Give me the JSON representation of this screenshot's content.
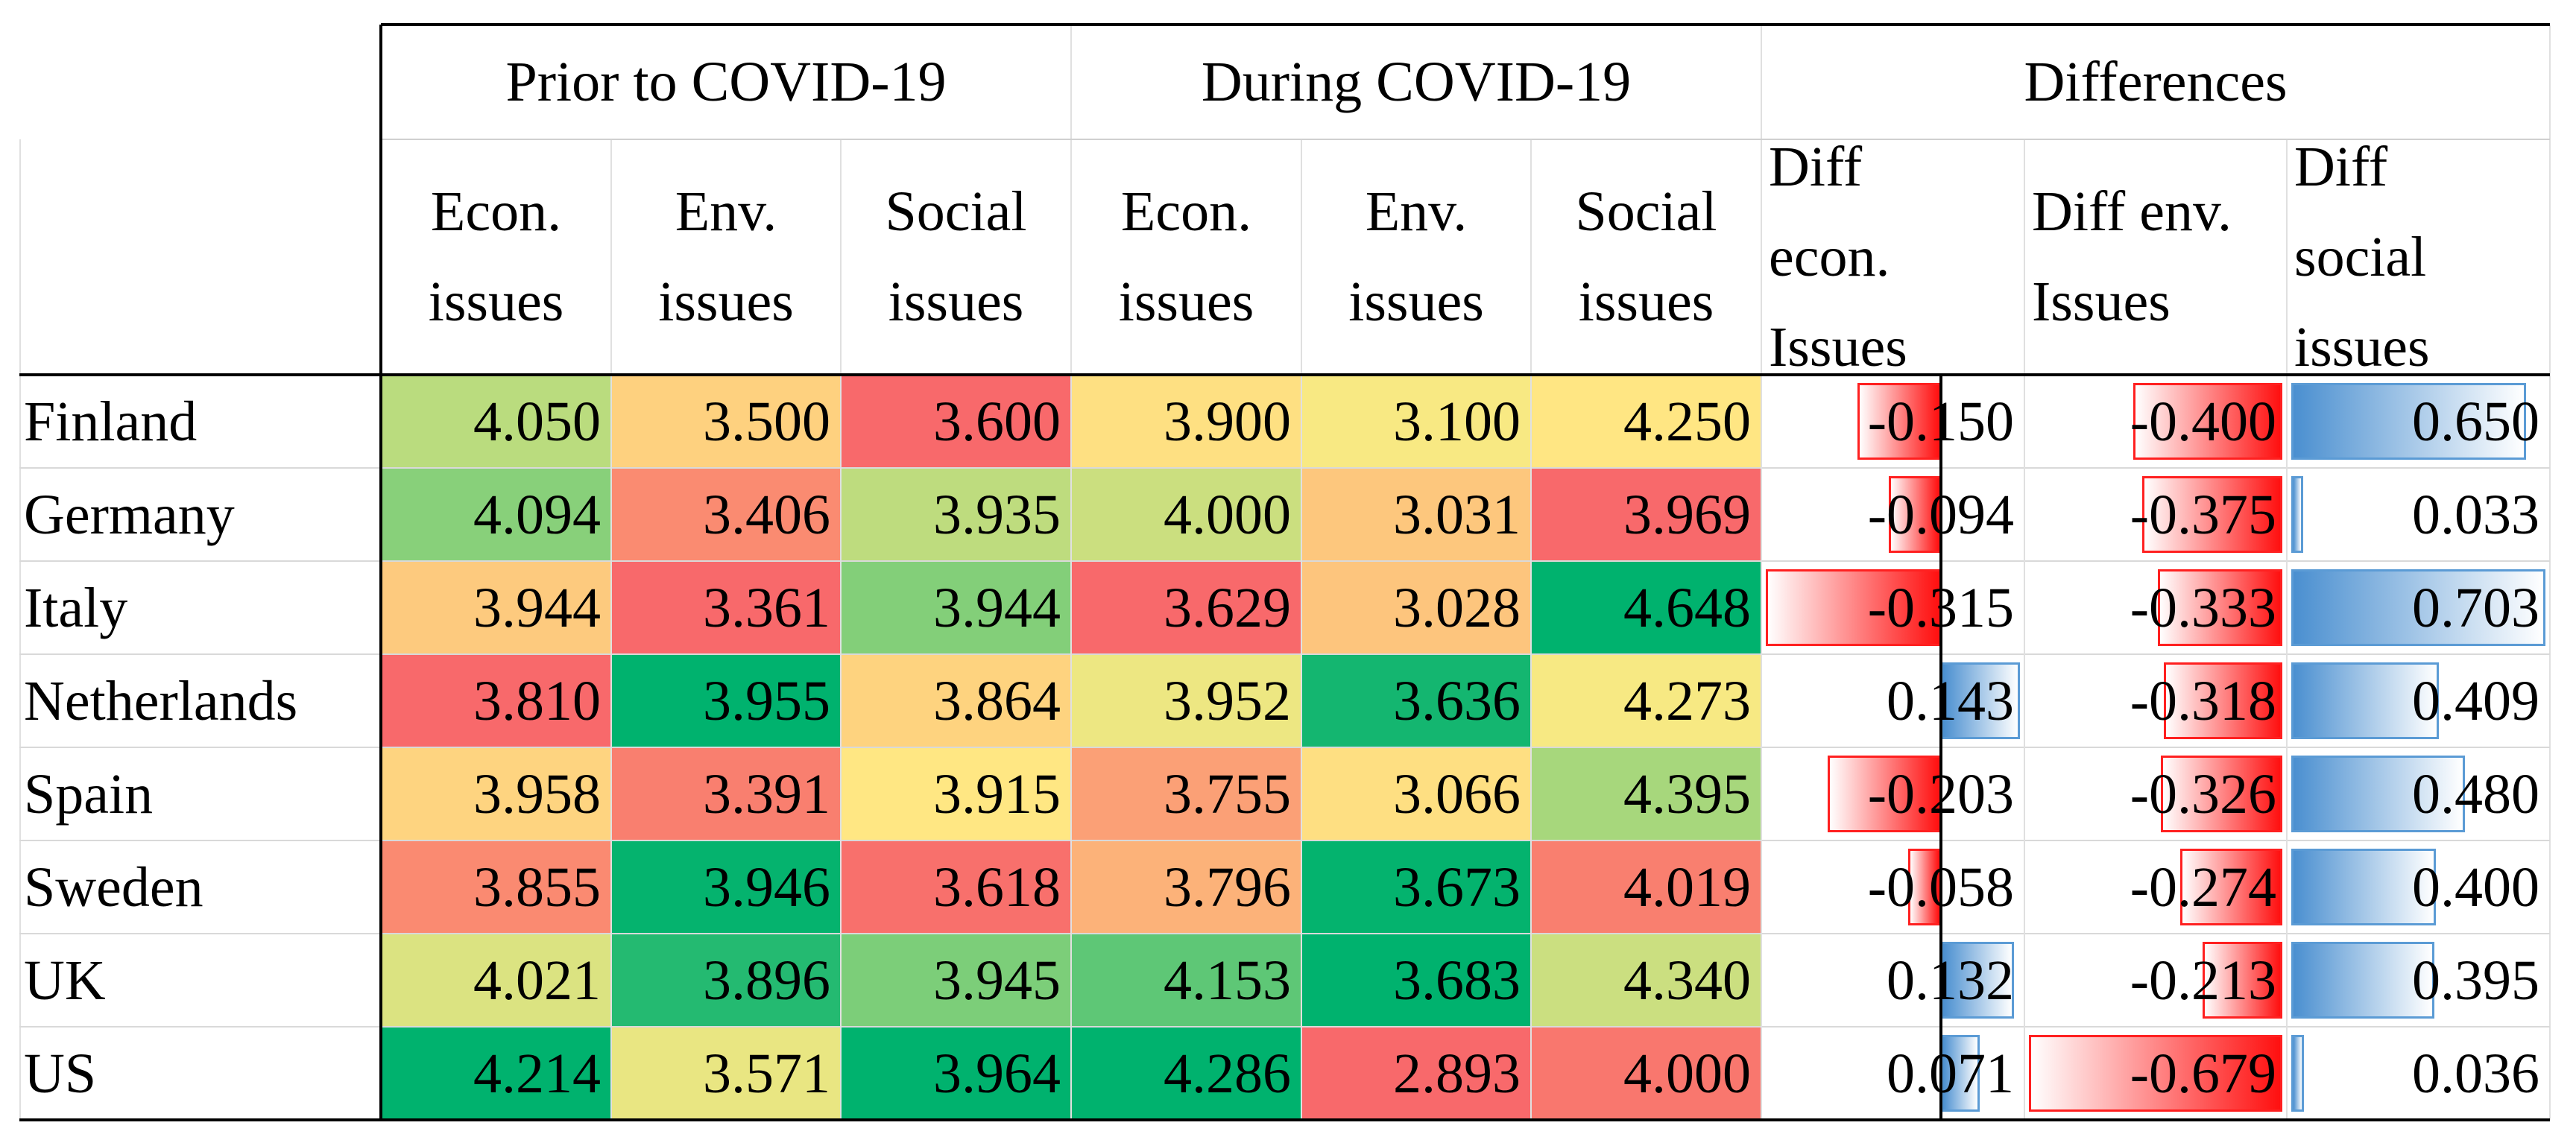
{
  "table": {
    "groups": [
      "Prior to COVID-19",
      "During COVID-19",
      "Differences"
    ],
    "columns": [
      "Econ.\nissues",
      "Env.\nissues",
      "Social\nissues",
      "Econ.\nissues",
      "Env.\nissues",
      "Social\nissues",
      "Diff\necon.\nIssues",
      "Diff env.\nIssues",
      "Diff\nsocial\nissues"
    ],
    "rows": [
      {
        "label": "Finland",
        "cells": [
          "4.050",
          "3.500",
          "3.600",
          "3.900",
          "3.100",
          "4.250",
          "-0.150",
          "-0.400",
          "0.650"
        ]
      },
      {
        "label": "Germany",
        "cells": [
          "4.094",
          "3.406",
          "3.935",
          "4.000",
          "3.031",
          "3.969",
          "-0.094",
          "-0.375",
          "0.033"
        ]
      },
      {
        "label": "Italy",
        "cells": [
          "3.944",
          "3.361",
          "3.944",
          "3.629",
          "3.028",
          "4.648",
          "-0.315",
          "-0.333",
          "0.703"
        ]
      },
      {
        "label": "Netherlands",
        "cells": [
          "3.810",
          "3.955",
          "3.864",
          "3.952",
          "3.636",
          "4.273",
          "0.143",
          "-0.318",
          "0.409"
        ]
      },
      {
        "label": "Spain",
        "cells": [
          "3.958",
          "3.391",
          "3.915",
          "3.755",
          "3.066",
          "4.395",
          "-0.203",
          "-0.326",
          "0.480"
        ]
      },
      {
        "label": "Sweden",
        "cells": [
          "3.855",
          "3.946",
          "3.618",
          "3.796",
          "3.673",
          "4.019",
          "-0.058",
          "-0.274",
          "0.400"
        ]
      },
      {
        "label": "UK",
        "cells": [
          "4.021",
          "3.896",
          "3.945",
          "4.153",
          "3.683",
          "4.340",
          "0.132",
          "-0.213",
          "0.395"
        ]
      },
      {
        "label": "US",
        "cells": [
          "4.214",
          "3.571",
          "3.964",
          "4.286",
          "2.893",
          "4.000",
          "0.071",
          "-0.679",
          "0.036"
        ]
      }
    ]
  }
}
